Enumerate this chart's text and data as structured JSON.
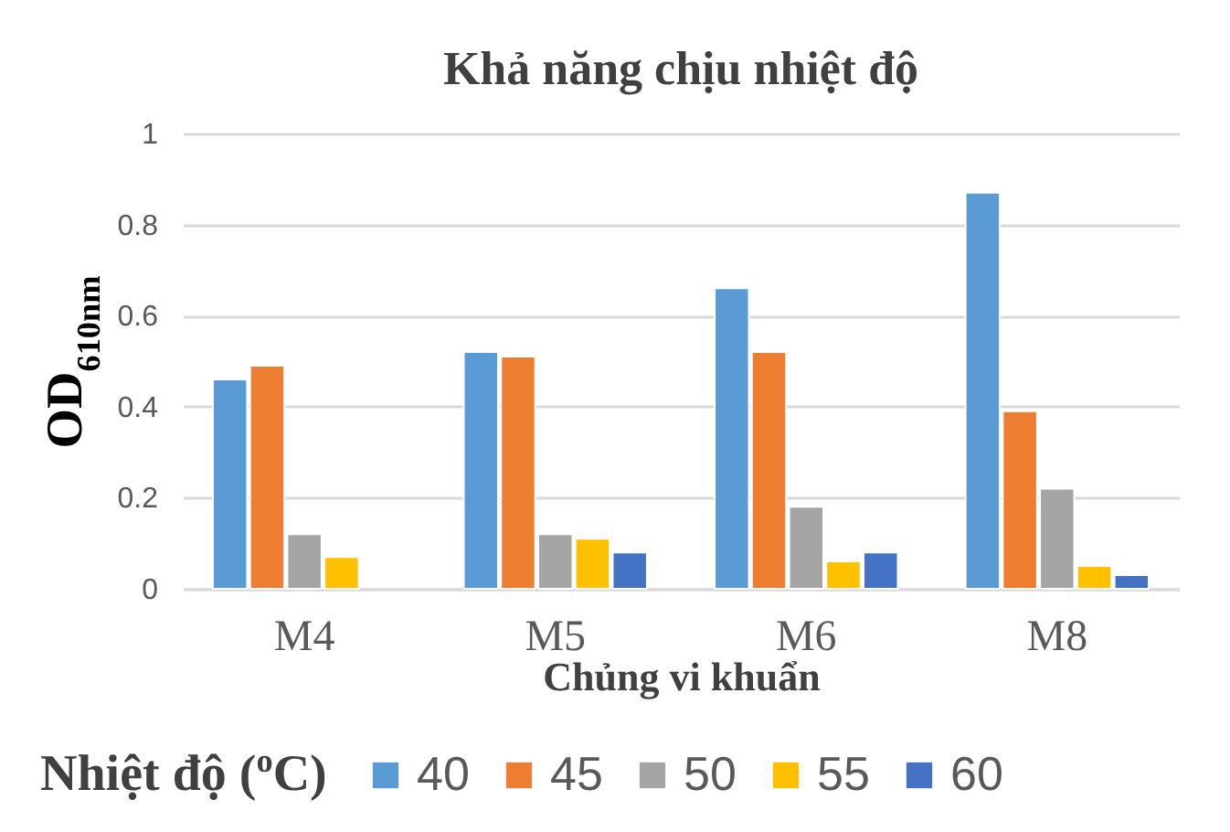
{
  "chart_data": {
    "type": "bar",
    "title": "Khả năng chịu nhiệt độ",
    "xlabel": "Chủng vi khuẩn",
    "ylabel": "OD$_{610nm}$",
    "legend_title": "Nhiệt độ ($^{o}$C)",
    "categories": [
      "M4",
      "M5",
      "M6",
      "M8"
    ],
    "series": [
      {
        "name": "40",
        "color": "#5b9bd5",
        "values": [
          0.46,
          0.52,
          0.66,
          0.87
        ]
      },
      {
        "name": "45",
        "color": "#ed7d31",
        "values": [
          0.49,
          0.51,
          0.52,
          0.39
        ]
      },
      {
        "name": "50",
        "color": "#a5a5a5",
        "values": [
          0.12,
          0.12,
          0.18,
          0.22
        ]
      },
      {
        "name": "55",
        "color": "#ffc000",
        "values": [
          0.07,
          0.11,
          0.06,
          0.05
        ]
      },
      {
        "name": "60",
        "color": "#4472c4",
        "values": [
          null,
          0.08,
          0.08,
          0.03
        ]
      }
    ],
    "ylim": [
      0,
      1
    ],
    "yticks": [
      0,
      0.2,
      0.4,
      0.6,
      0.8,
      1
    ],
    "grid": "y",
    "legend": "bottom"
  }
}
